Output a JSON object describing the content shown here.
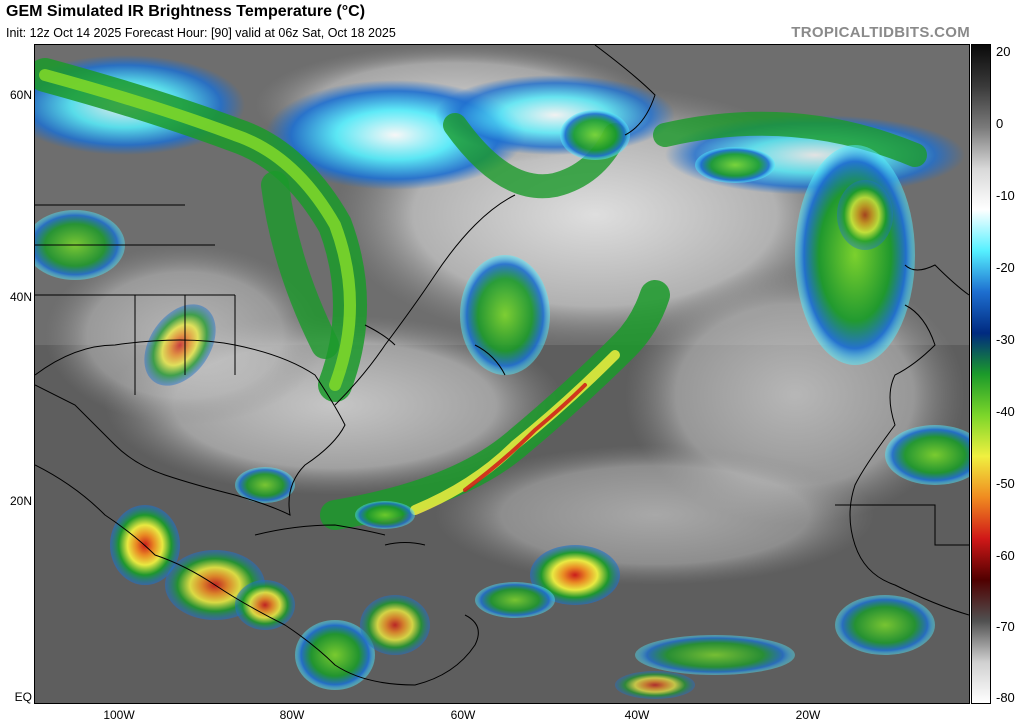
{
  "title": "GEM Simulated IR Brightness Temperature (°C)",
  "subtitle": "Init: 12z Oct 14 2025   Forecast Hour: [90]   valid at 06z Sat, Oct 18 2025",
  "brand": "TROPICALTIDBITS.COM",
  "map": {
    "lat_labels": [
      "60N",
      "40N",
      "20N",
      "EQ"
    ],
    "lon_labels": [
      "100W",
      "80W",
      "60W",
      "40W",
      "20W"
    ],
    "background_color": "#6e6e6e",
    "coastline_color": "#000000"
  },
  "colorbar": {
    "tick_labels": [
      "20",
      "0",
      "-10",
      "-20",
      "-30",
      "-40",
      "-50",
      "-60",
      "-70",
      "-80"
    ],
    "color_stops": [
      "#0a0a0a",
      "#3a3a3a",
      "#7a7a7a",
      "#d8d8d8",
      "#ffffff",
      "#55f0ff",
      "#1e6fd0",
      "#002a80",
      "#1b9a2a",
      "#7cd62a",
      "#f0f040",
      "#f08a20",
      "#d01818",
      "#500000",
      "#505050",
      "#d0d0d0",
      "#ffffff"
    ]
  }
}
